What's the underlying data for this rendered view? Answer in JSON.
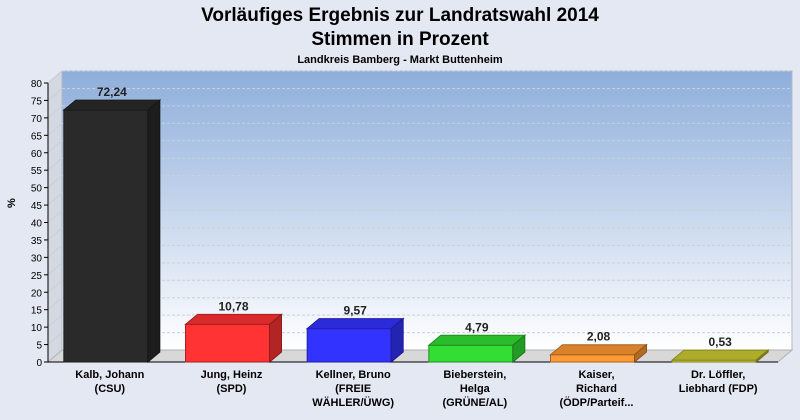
{
  "chart_data": {
    "type": "bar",
    "title_line1": "Vorläufiges Ergebnis zur Landratswahl 2014",
    "title_line2": "Stimmen in Prozent",
    "subtitle": "Landkreis Bamberg - Markt Buttenheim",
    "ylabel": "%",
    "ylim": [
      0,
      80
    ],
    "yticks": [
      0,
      5,
      10,
      15,
      20,
      25,
      30,
      35,
      40,
      45,
      50,
      55,
      60,
      65,
      70,
      75,
      80
    ],
    "grid": true,
    "categories": [
      [
        "Kalb, Johann",
        "(CSU)"
      ],
      [
        "Jung, Heinz",
        "(SPD)"
      ],
      [
        "Kellner, Bruno",
        "(FREIE",
        "WÄHLER/ÜWG)"
      ],
      [
        "Bieberstein,",
        "Helga",
        "(GRÜNE/AL)"
      ],
      [
        "Kaiser,",
        "Richard",
        "(ÖDP/Parteif..."
      ],
      [
        "Dr. Löffler,",
        "Liebhard (FDP)"
      ]
    ],
    "values": [
      72.24,
      10.78,
      9.57,
      4.79,
      2.08,
      0.53
    ],
    "value_labels": [
      "72,24",
      "10,78",
      "9,57",
      "4,79",
      "2,08",
      "0,53"
    ],
    "colors": [
      "#2a2a2a",
      "#ff3333",
      "#3333ff",
      "#33dd33",
      "#ff9933",
      "#cccc33"
    ]
  }
}
